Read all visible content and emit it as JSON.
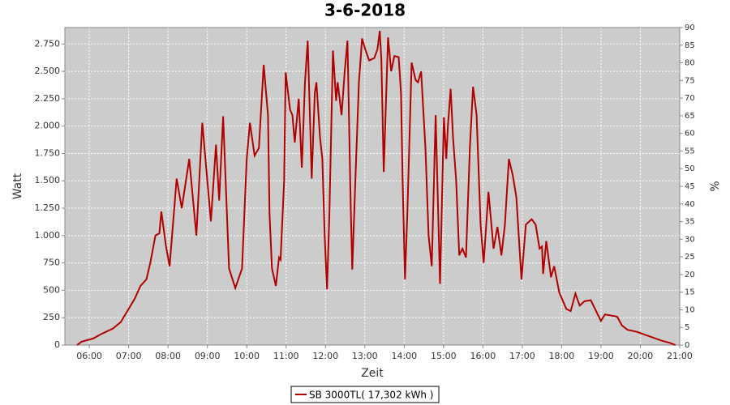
{
  "chart_data": {
    "type": "line",
    "title": "3-6-2018",
    "x_label": "Zeit",
    "y_label": "Watt",
    "y2_label": "%",
    "xlim": [
      5.38,
      21.0
    ],
    "xticks": [
      {
        "value": 6,
        "label": "06:00"
      },
      {
        "value": 7,
        "label": "07:00"
      },
      {
        "value": 8,
        "label": "08:00"
      },
      {
        "value": 9,
        "label": "09:00"
      },
      {
        "value": 10,
        "label": "10:00"
      },
      {
        "value": 11,
        "label": "11:00"
      },
      {
        "value": 12,
        "label": "12:00"
      },
      {
        "value": 13,
        "label": "13:00"
      },
      {
        "value": 14,
        "label": "14:00"
      },
      {
        "value": 15,
        "label": "15:00"
      },
      {
        "value": 16,
        "label": "16:00"
      },
      {
        "value": 17,
        "label": "17:00"
      },
      {
        "value": 18,
        "label": "18:00"
      },
      {
        "value": 19,
        "label": "19:00"
      },
      {
        "value": 20,
        "label": "20:00"
      },
      {
        "value": 21,
        "label": "21:00"
      }
    ],
    "ylim": [
      0,
      2900
    ],
    "yticks": [
      0,
      250,
      500,
      750,
      {
        "value": 1000,
        "label": "1.000"
      },
      {
        "value": 1250,
        "label": "1.250"
      },
      {
        "value": 1500,
        "label": "1.500"
      },
      {
        "value": 1750,
        "label": "1.750"
      },
      {
        "value": 2000,
        "label": "2.000"
      },
      {
        "value": 2250,
        "label": "2.250"
      },
      {
        "value": 2500,
        "label": "2.500"
      },
      {
        "value": 2750,
        "label": "2.750"
      }
    ],
    "y2lim": [
      0,
      90
    ],
    "y2ticks": [
      0,
      5,
      10,
      15,
      20,
      25,
      30,
      35,
      40,
      45,
      50,
      55,
      60,
      65,
      70,
      75,
      80,
      85,
      90
    ],
    "grid": true,
    "legend": "bottom",
    "x": [
      5.69,
      5.8,
      6.1,
      6.3,
      6.6,
      6.8,
      7.0,
      7.15,
      7.3,
      7.45,
      7.55,
      7.68,
      7.78,
      7.83,
      7.95,
      8.04,
      8.22,
      8.35,
      8.54,
      8.72,
      8.87,
      9.09,
      9.22,
      9.3,
      9.4,
      9.55,
      9.71,
      9.88,
      10.0,
      10.08,
      10.2,
      10.31,
      10.43,
      10.54,
      10.58,
      10.64,
      10.74,
      10.82,
      10.86,
      10.95,
      10.99,
      11.1,
      11.16,
      11.22,
      11.32,
      11.4,
      11.48,
      11.55,
      11.65,
      11.73,
      11.77,
      11.86,
      11.92,
      11.98,
      12.04,
      12.1,
      12.19,
      12.27,
      12.31,
      12.41,
      12.49,
      12.56,
      12.64,
      12.68,
      12.76,
      12.85,
      12.93,
      13.01,
      13.11,
      13.24,
      13.32,
      13.38,
      13.42,
      13.48,
      13.59,
      13.67,
      13.75,
      13.86,
      13.92,
      13.96,
      14.02,
      14.08,
      14.19,
      14.29,
      14.35,
      14.43,
      14.54,
      14.62,
      14.7,
      14.8,
      14.91,
      15.01,
      15.07,
      15.11,
      15.18,
      15.24,
      15.32,
      15.4,
      15.48,
      15.57,
      15.67,
      15.75,
      15.84,
      15.94,
      16.02,
      16.14,
      16.27,
      16.37,
      16.47,
      16.56,
      16.66,
      16.76,
      16.85,
      16.98,
      17.09,
      17.24,
      17.34,
      17.44,
      17.5,
      17.53,
      17.61,
      17.73,
      17.81,
      17.94,
      18.12,
      18.23,
      18.35,
      18.46,
      18.58,
      18.74,
      18.89,
      19.0,
      19.1,
      19.41,
      19.53,
      19.67,
      19.92,
      20.23,
      20.54,
      20.75,
      20.89
    ],
    "series": [
      {
        "name": "SB 3000TL( 17,302 kWh )",
        "color": "#b20000",
        "values": [
          0,
          30,
          60,
          100,
          150,
          210,
          330,
          420,
          540,
          600,
          750,
          1000,
          1020,
          1220,
          900,
          720,
          1520,
          1250,
          1700,
          1000,
          2030,
          1130,
          1830,
          1320,
          2090,
          700,
          520,
          700,
          1700,
          2030,
          1730,
          1800,
          2560,
          2100,
          1200,
          700,
          540,
          800,
          780,
          1500,
          2490,
          2150,
          2100,
          1850,
          2250,
          1620,
          2400,
          2780,
          1520,
          2300,
          2400,
          1900,
          1700,
          1000,
          510,
          1200,
          2690,
          2230,
          2400,
          2100,
          2500,
          2780,
          1300,
          690,
          1500,
          2400,
          2800,
          2700,
          2600,
          2620,
          2700,
          2870,
          2600,
          1580,
          2810,
          2500,
          2640,
          2630,
          2300,
          1500,
          600,
          1200,
          2580,
          2420,
          2400,
          2500,
          1800,
          1000,
          720,
          2100,
          560,
          2080,
          1700,
          2000,
          2340,
          1900,
          1500,
          820,
          880,
          800,
          1800,
          2360,
          2100,
          1100,
          750,
          1400,
          880,
          1080,
          820,
          1100,
          1700,
          1550,
          1350,
          600,
          1100,
          1150,
          1100,
          880,
          900,
          650,
          950,
          620,
          720,
          480,
          330,
          310,
          470,
          360,
          400,
          410,
          300,
          220,
          280,
          260,
          180,
          140,
          120,
          80,
          40,
          20,
          0
        ]
      }
    ]
  }
}
